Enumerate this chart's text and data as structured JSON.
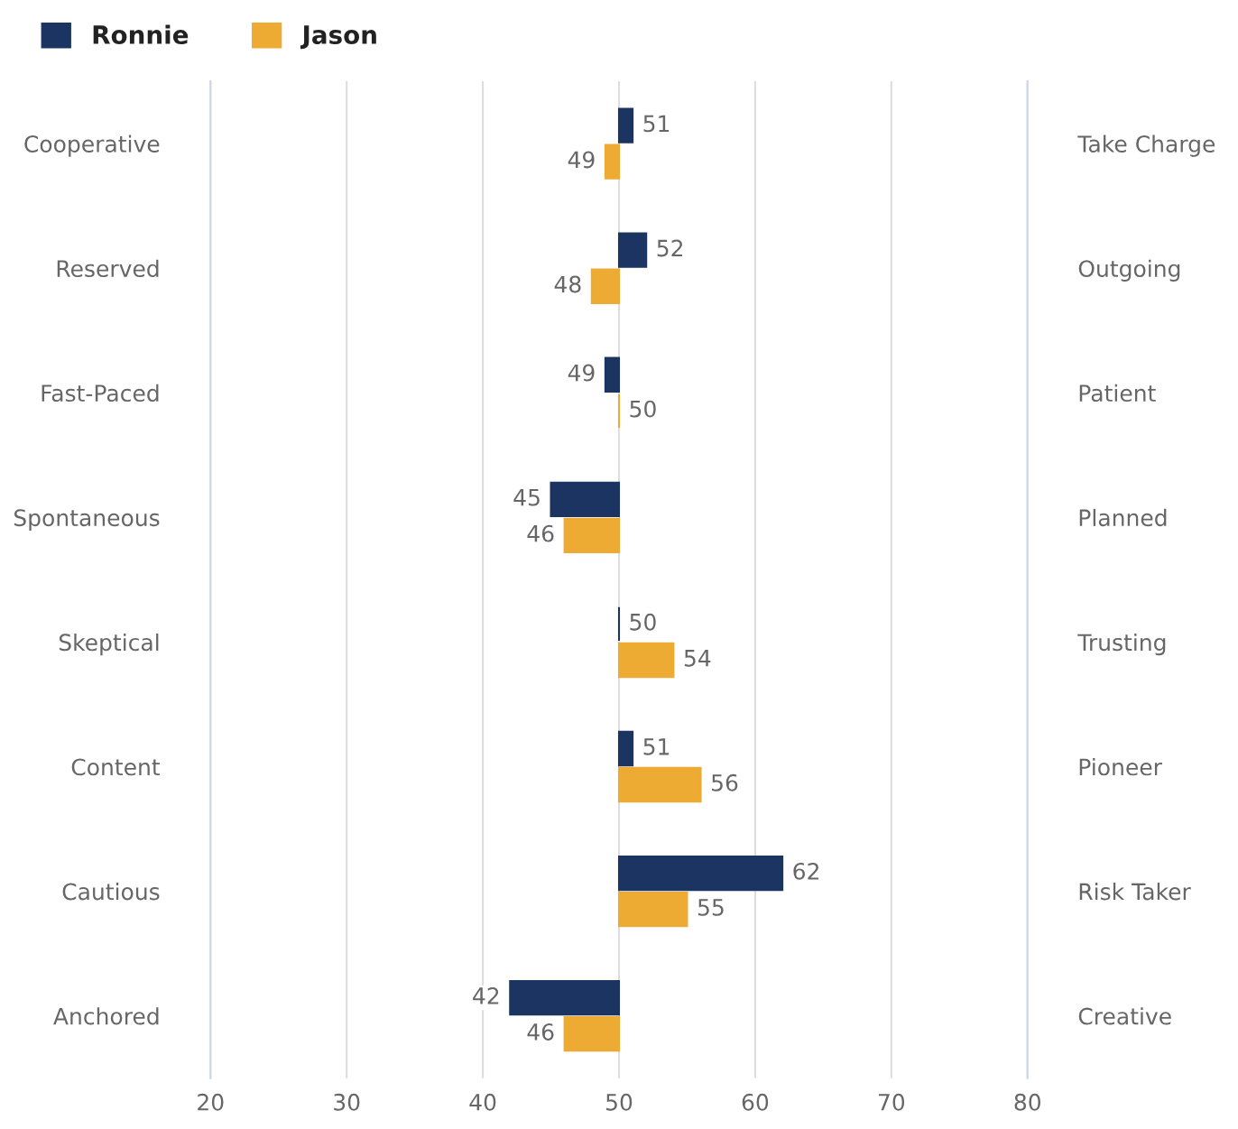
{
  "chart_data": {
    "type": "bar",
    "orientation": "horizontal",
    "categories": [
      "Cooperative",
      "Reserved",
      "Fast-Paced",
      "Spontaneous",
      "Skeptical",
      "Content",
      "Cautious",
      "Anchored"
    ],
    "y2_categories": [
      "Take Charge",
      "Outgoing",
      "Patient",
      "Planned",
      "Trusting",
      "Pioneer",
      "Risk Taker",
      "Creative"
    ],
    "series": [
      {
        "name": "Ronnie",
        "color": "#1b3461",
        "base": [
          50,
          50,
          50,
          50,
          50,
          50,
          50,
          50
        ],
        "values": [
          1,
          2,
          -1,
          -5,
          0,
          1,
          12,
          -8
        ],
        "value_labels": [
          "51",
          "52",
          "49",
          "45",
          "50",
          "51",
          "62",
          "42"
        ]
      },
      {
        "name": "Jason",
        "color": "#edab33",
        "base": [
          50,
          50,
          50,
          50,
          50,
          50,
          50,
          50
        ],
        "values": [
          -1,
          -2,
          0,
          -4,
          4,
          6,
          5,
          -4
        ],
        "value_labels": [
          "49",
          "48",
          "50",
          "46",
          "54",
          "56",
          "55",
          "46"
        ]
      }
    ],
    "xlim": [
      20,
      80
    ],
    "xticks": [
      20,
      30,
      40,
      50,
      60,
      70,
      80
    ],
    "grid": "x",
    "legend": "top left"
  }
}
